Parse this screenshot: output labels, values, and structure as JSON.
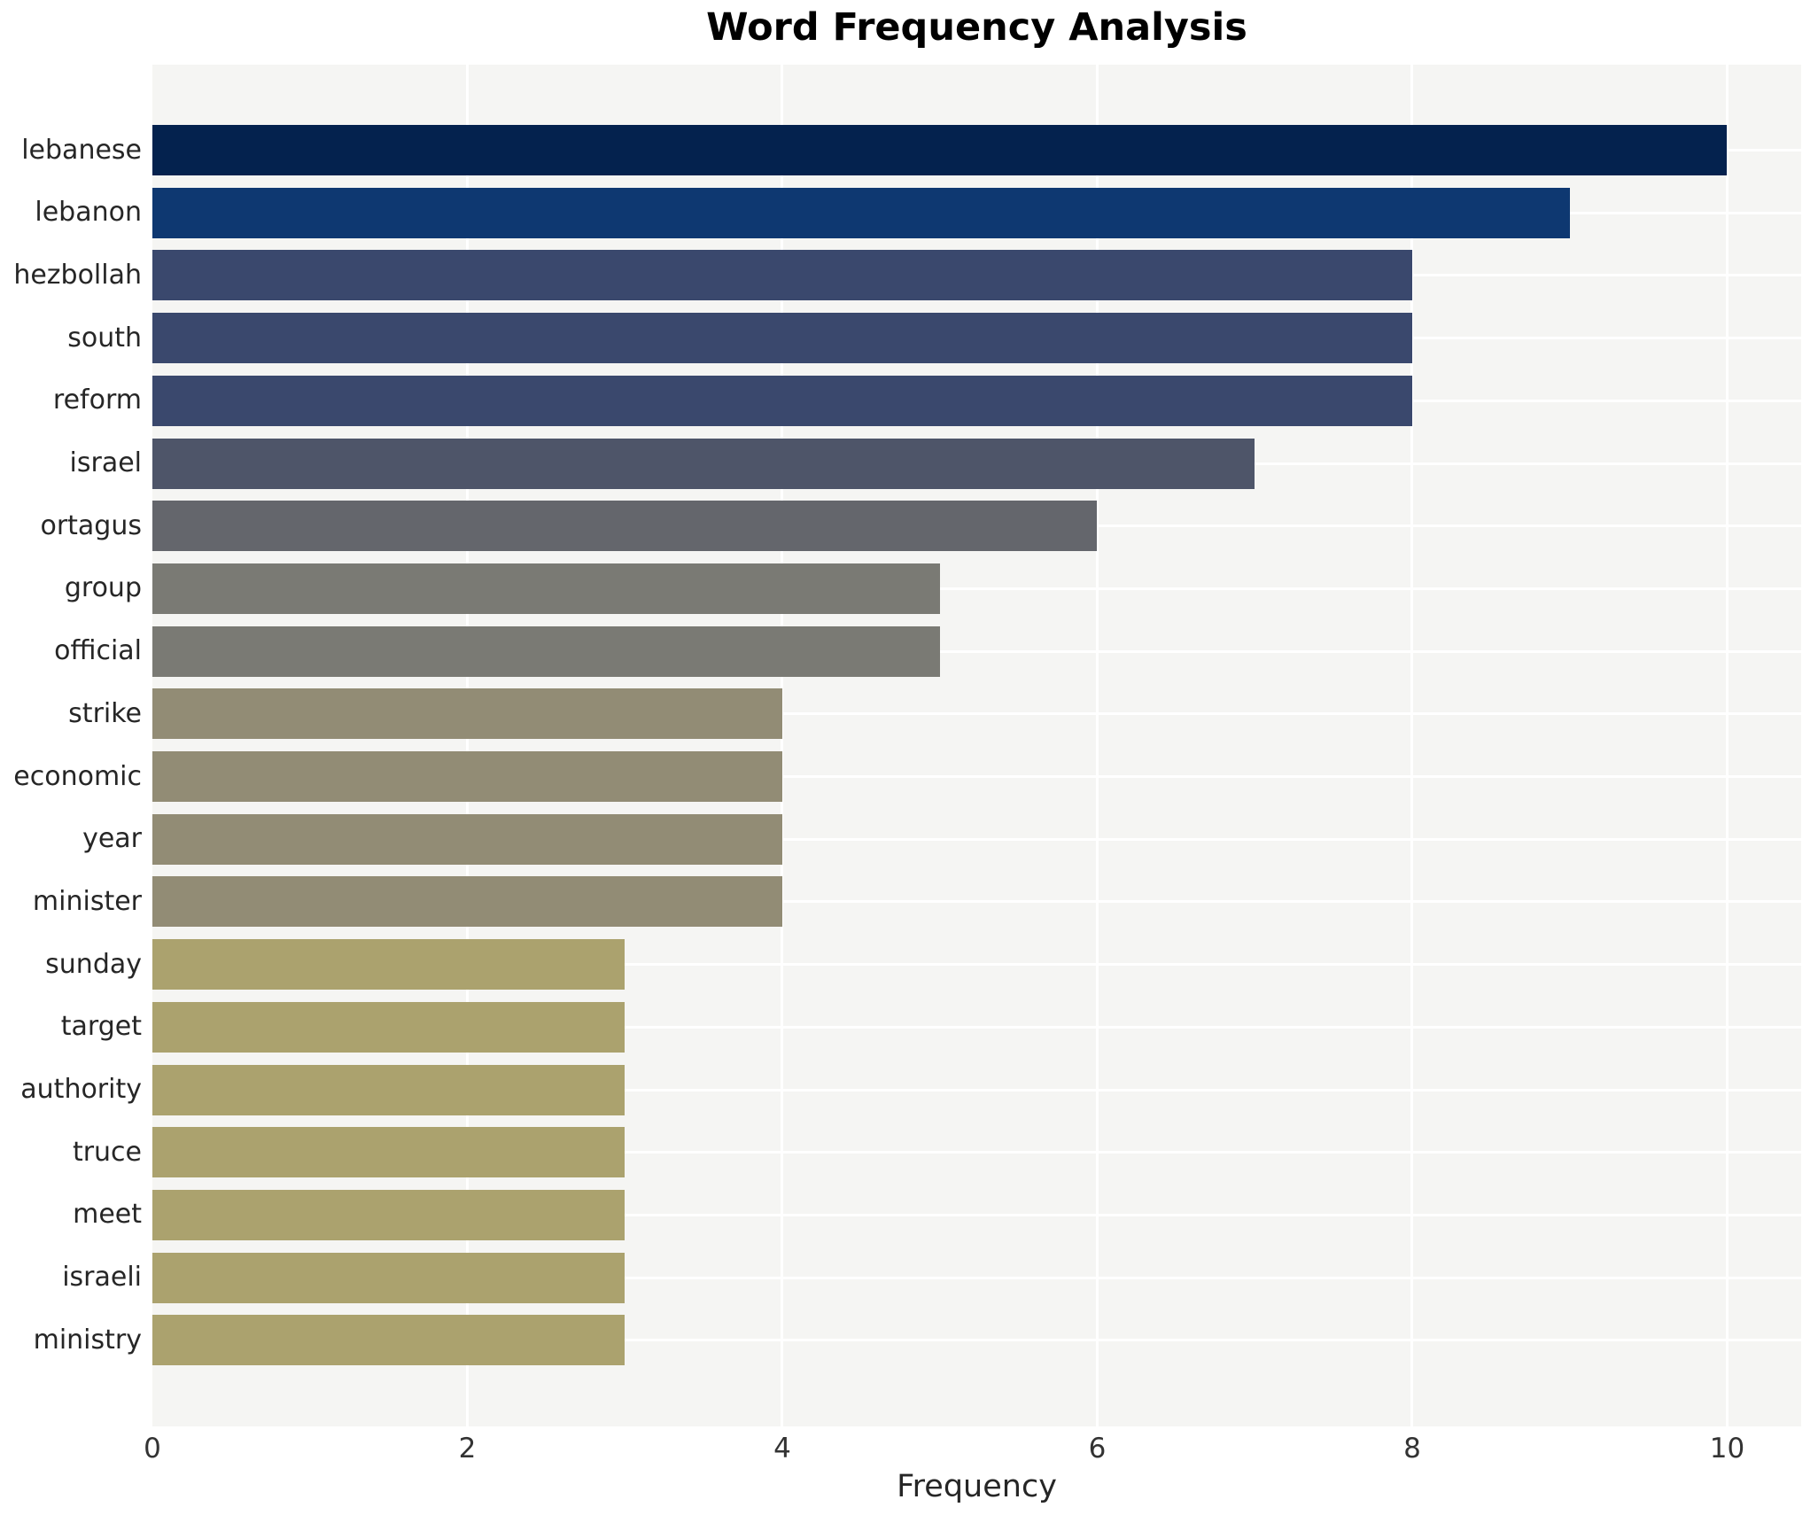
{
  "chart_data": {
    "type": "bar",
    "orientation": "horizontal",
    "title": "Word Frequency Analysis",
    "xlabel": "Frequency",
    "ylabel": "",
    "categories": [
      "lebanese",
      "lebanon",
      "hezbollah",
      "south",
      "reform",
      "israel",
      "ortagus",
      "group",
      "official",
      "strike",
      "economic",
      "year",
      "minister",
      "sunday",
      "target",
      "authority",
      "truce",
      "meet",
      "israeli",
      "ministry"
    ],
    "values": [
      10,
      9,
      8,
      8,
      8,
      7,
      6,
      5,
      5,
      4,
      4,
      4,
      4,
      3,
      3,
      3,
      3,
      3,
      3,
      3
    ],
    "bar_colors": [
      "#04224e",
      "#0e3871",
      "#3a486d",
      "#3a486d",
      "#3a486d",
      "#4e5569",
      "#64666c",
      "#7a7a74",
      "#7a7a74",
      "#928c75",
      "#928c75",
      "#928c75",
      "#928c75",
      "#aba26e",
      "#aba26e",
      "#aba26e",
      "#aba26e",
      "#aba26e",
      "#aba26e",
      "#aba26e"
    ],
    "xticks": [
      0,
      2,
      4,
      6,
      8,
      10
    ],
    "xlim": [
      0,
      10.47
    ],
    "grid": true,
    "legend": "none",
    "plot_background": "#f5f5f3",
    "grid_color": "#ffffff",
    "text_color": "#262626"
  }
}
